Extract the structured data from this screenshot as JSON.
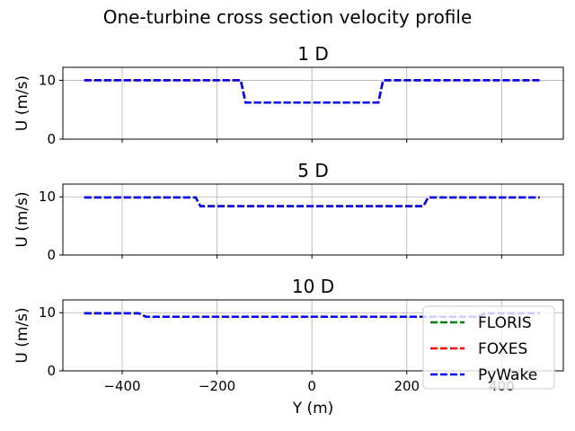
{
  "figure": {
    "title": "One-turbine cross section velocity profile"
  },
  "legend": {
    "placement": "lower-right",
    "entries": [
      "FLORIS",
      "FOXES",
      "PyWake"
    ]
  },
  "chart_data": {
    "type": "line",
    "xlabel": "Y (m)",
    "ylabel": "U (m/s)",
    "xlim": [
      -525,
      530
    ],
    "ylim": [
      0,
      12.2
    ],
    "xticks": [
      -400,
      -200,
      0,
      200,
      400
    ],
    "yticks": [
      0,
      10
    ],
    "grid": true,
    "series_styles": [
      {
        "name": "FLORIS",
        "color": "#008000",
        "dash": "dashed"
      },
      {
        "name": "FOXES",
        "color": "#ff0000",
        "dash": "dashed"
      },
      {
        "name": "PyWake",
        "color": "#0000ff",
        "dash": "dashed"
      }
    ],
    "panels": [
      {
        "title": "1 D",
        "x": [
          -480,
          -150,
          -140,
          140,
          150,
          480
        ],
        "y": [
          10,
          10,
          6.2,
          6.2,
          10,
          10
        ]
      },
      {
        "title": "5 D",
        "x": [
          -480,
          -245,
          -235,
          235,
          245,
          480
        ],
        "y": [
          9.9,
          9.9,
          8.4,
          8.4,
          9.9,
          9.9
        ]
      },
      {
        "title": "10 D",
        "x": [
          -480,
          -365,
          -350,
          350,
          365,
          480
        ],
        "y": [
          9.9,
          9.9,
          9.3,
          9.3,
          9.9,
          9.9
        ]
      }
    ]
  }
}
